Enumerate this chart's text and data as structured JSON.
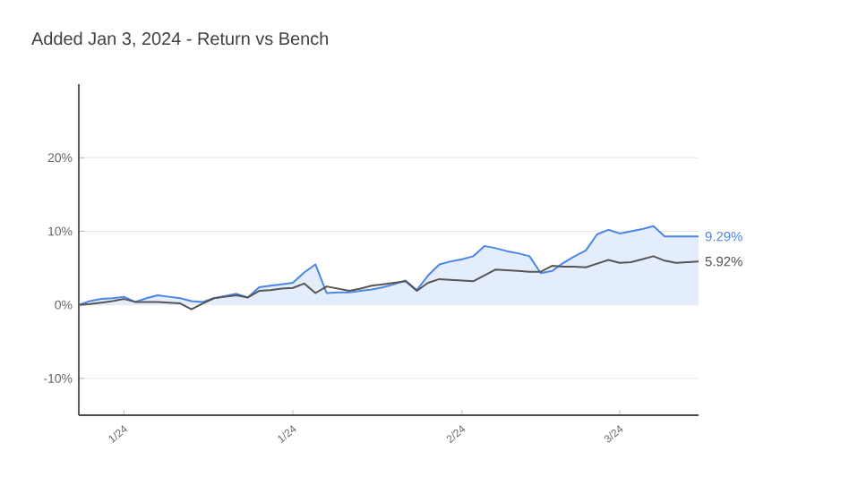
{
  "chart_data": {
    "type": "line",
    "title": "Added Jan 3, 2024 - Return vs Bench",
    "categories": [
      null,
      null,
      null,
      null,
      "1/24",
      null,
      null,
      null,
      null,
      null,
      null,
      null,
      null,
      null,
      null,
      null,
      null,
      null,
      null,
      "1/24",
      null,
      null,
      null,
      null,
      null,
      null,
      null,
      null,
      null,
      null,
      null,
      null,
      null,
      null,
      "2/24",
      null,
      null,
      null,
      null,
      null,
      null,
      null,
      null,
      null,
      null,
      null,
      null,
      null,
      "3/24",
      null,
      null,
      null,
      null,
      null,
      null,
      null
    ],
    "ylim": [
      -15,
      30
    ],
    "yticks": [
      {
        "value": -10,
        "label": "-10%"
      },
      {
        "value": 0,
        "label": "0%"
      },
      {
        "value": 10,
        "label": "10%"
      },
      {
        "value": 20,
        "label": "20%"
      }
    ],
    "grid": "y",
    "marker": "none",
    "line_style": "solid",
    "series": [
      {
        "name": "9.29%",
        "type": "area",
        "color": "#4a86e8",
        "values": [
          0,
          0.5,
          0.8,
          0.9,
          1.1,
          0.4,
          0.9,
          1.3,
          1.1,
          0.9,
          0.5,
          0.4,
          0.9,
          1.2,
          1.5,
          1.0,
          2.4,
          2.6,
          2.8,
          3.0,
          4.4,
          5.5,
          1.6,
          1.7,
          1.7,
          1.9,
          2.1,
          2.4,
          2.8,
          3.3,
          2.0,
          4.0,
          5.5,
          5.9,
          6.2,
          6.6,
          8.0,
          7.7,
          7.3,
          7.0,
          6.6,
          4.3,
          4.6,
          5.7,
          6.6,
          7.4,
          9.6,
          10.2,
          9.7,
          10.0,
          10.3,
          10.7,
          9.3,
          9.3,
          9.3,
          9.3
        ]
      },
      {
        "name": "5.92%",
        "color": "#555555",
        "values": [
          0,
          0.1,
          0.3,
          0.5,
          0.8,
          0.4,
          0.4,
          0.4,
          0.3,
          0.2,
          -0.6,
          0.2,
          0.9,
          1.1,
          1.3,
          1.0,
          1.9,
          2.0,
          2.2,
          2.3,
          2.9,
          1.6,
          2.5,
          2.2,
          1.9,
          2.2,
          2.6,
          2.8,
          3.0,
          3.2,
          1.9,
          3.0,
          3.5,
          3.4,
          3.3,
          3.2,
          4.0,
          4.8,
          4.7,
          4.6,
          4.5,
          4.5,
          5.3,
          5.2,
          5.2,
          5.1,
          5.6,
          6.1,
          5.7,
          5.8,
          6.2,
          6.6,
          6.0,
          5.7,
          5.8,
          5.9
        ]
      }
    ]
  }
}
